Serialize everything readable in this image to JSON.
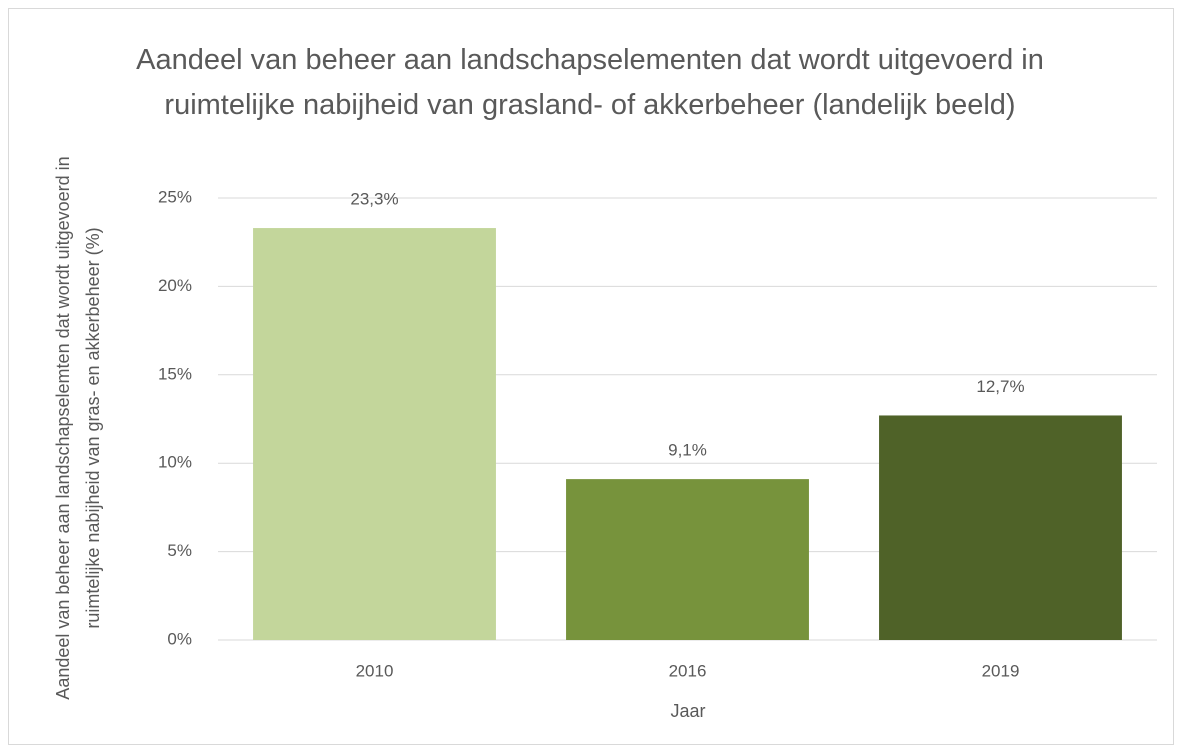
{
  "chart_data": {
    "type": "bar",
    "title": "Aandeel van beheer aan landschapselementen dat wordt uitgevoerd in ruimtelijke nabijheid van grasland- of akkerbeheer (landelijk beeld)",
    "x_label": "Jaar",
    "y_label": "Aandeel van beheer aan landschapselemten dat wordt uitgevoerd in ruimtelijke nabijheid van gras- en akkerbeheer (%)",
    "categories": [
      "2010",
      "2016",
      "2019"
    ],
    "values": [
      23.3,
      9.1,
      12.7
    ],
    "value_labels": [
      "23,3%",
      "9,1%",
      "12,7%"
    ],
    "colors": [
      "#c3d69b",
      "#77933c",
      "#4f6228"
    ],
    "ylim": [
      0,
      25
    ],
    "yticks": [
      {
        "value": 0,
        "label": "0%"
      },
      {
        "value": 5,
        "label": "5%"
      },
      {
        "value": 10,
        "label": "10%"
      },
      {
        "value": 15,
        "label": "15%"
      },
      {
        "value": 20,
        "label": "20%"
      },
      {
        "value": 25,
        "label": "25%"
      }
    ],
    "grid": true
  }
}
